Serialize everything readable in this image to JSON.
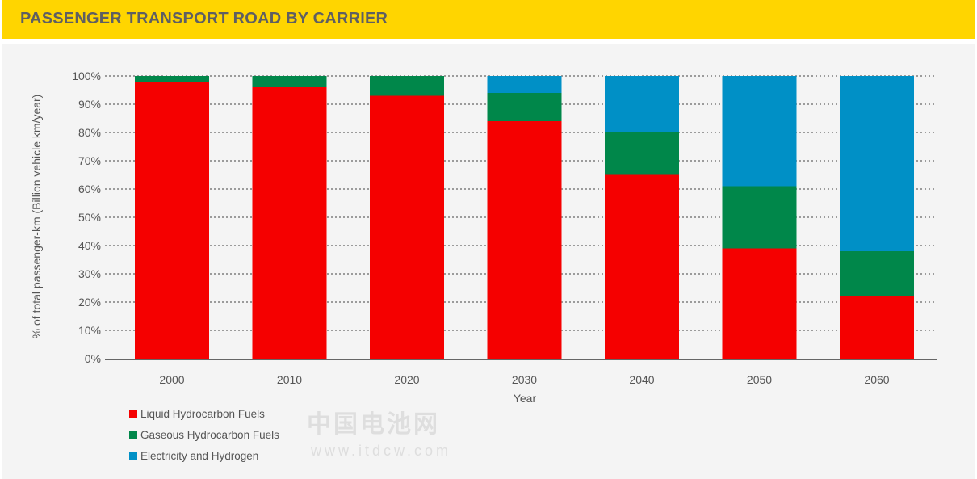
{
  "header": {
    "title": "PASSENGER TRANSPORT ROAD BY CARRIER"
  },
  "watermark": {
    "line1": "中国电池网",
    "line2": "www.itdcw.com"
  },
  "chart_data": {
    "type": "bar",
    "stacked": true,
    "title": "PASSENGER TRANSPORT ROAD BY CARRIER",
    "xlabel": "Year",
    "ylabel": "% of total passenger-km (Billion vehicle km/year)",
    "ylim": [
      0,
      100
    ],
    "yticks": [
      "0%",
      "10%",
      "20%",
      "30%",
      "40%",
      "50%",
      "60%",
      "70%",
      "80%",
      "90%",
      "100%"
    ],
    "grid": "horizontal dotted",
    "legend": "bottom-left",
    "categories": [
      "2000",
      "2010",
      "2020",
      "2030",
      "2040",
      "2050",
      "2060"
    ],
    "series": [
      {
        "name": "Liquid Hydrocarbon Fuels",
        "color": "#f50000",
        "values": [
          98,
          96,
          93,
          84,
          65,
          39,
          22
        ]
      },
      {
        "name": "Gaseous Hydrocarbon Fuels",
        "color": "#00874a",
        "values": [
          2,
          4,
          7,
          10,
          15,
          22,
          16
        ]
      },
      {
        "name": "Electricity and Hydrogen",
        "color": "#0090c6",
        "values": [
          0,
          0,
          0,
          6,
          20,
          39,
          62
        ]
      }
    ]
  }
}
